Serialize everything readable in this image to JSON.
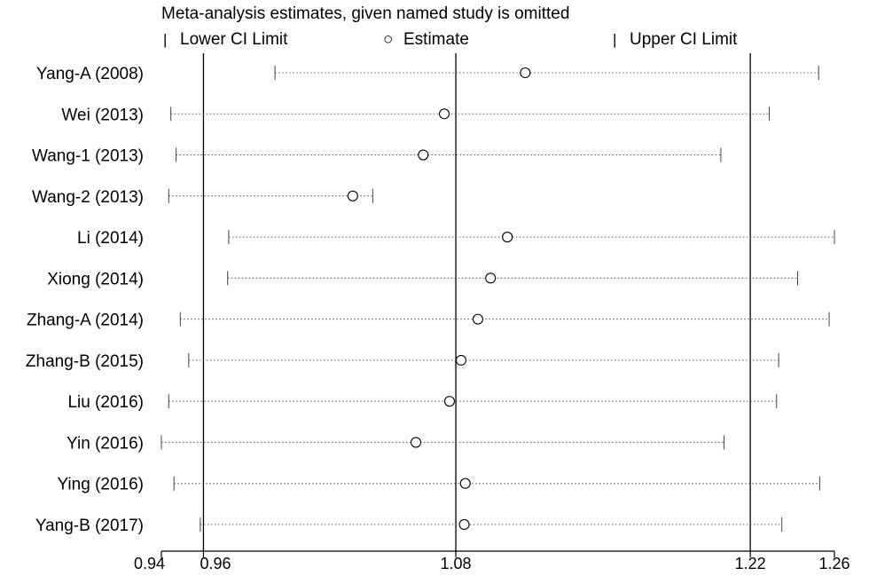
{
  "chart_data": {
    "type": "sensitivity-forest",
    "title": "Meta-analysis  estimates, given named study is omitted",
    "legend": {
      "lower_marker": "|",
      "lower_label": "Lower CI Limit",
      "estimate_marker": "○",
      "estimate_label": "Estimate",
      "upper_marker": "|",
      "upper_label": "Upper CI Limit",
      "placement": "top"
    },
    "xlim": [
      0.94,
      1.26
    ],
    "x_ticks": [
      0.94,
      0.96,
      1.08,
      1.22,
      1.26
    ],
    "x_tick_labels": [
      "0.94",
      "0.96",
      "1.08",
      "1.22",
      "1.26"
    ],
    "reference_lines": [
      0.96,
      1.08,
      1.22
    ],
    "studies": [
      {
        "label": "Yang-A  (2008)",
        "lower": 0.994,
        "estimate": 1.113,
        "upper": 1.2525
      },
      {
        "label": "Wei  (2013)",
        "lower": 0.9445,
        "estimate": 1.0745,
        "upper": 1.229
      },
      {
        "label": "Wang-1  (2013)",
        "lower": 0.947,
        "estimate": 1.0645,
        "upper": 1.206
      },
      {
        "label": "Wang-2  (2013)",
        "lower": 0.9435,
        "estimate": 1.031,
        "upper": 1.0405
      },
      {
        "label": "Li  (2014)",
        "lower": 0.972,
        "estimate": 1.1045,
        "upper": 1.26
      },
      {
        "label": "Xiong  (2014)",
        "lower": 0.9715,
        "estimate": 1.0965,
        "upper": 1.2425
      },
      {
        "label": "Zhang-A  (2014)",
        "lower": 0.949,
        "estimate": 1.0905,
        "upper": 1.2575
      },
      {
        "label": "Zhang-B  (2015)",
        "lower": 0.953,
        "estimate": 1.0825,
        "upper": 1.2335
      },
      {
        "label": "Liu  (2016)",
        "lower": 0.9435,
        "estimate": 1.077,
        "upper": 1.2325
      },
      {
        "label": "Yin  (2016)",
        "lower": 0.94,
        "estimate": 1.061,
        "upper": 1.2075
      },
      {
        "label": "Ying  (2016)",
        "lower": 0.946,
        "estimate": 1.0845,
        "upper": 1.253
      },
      {
        "label": "Yang-B  (2017)",
        "lower": 0.9585,
        "estimate": 1.084,
        "upper": 1.235
      }
    ]
  }
}
